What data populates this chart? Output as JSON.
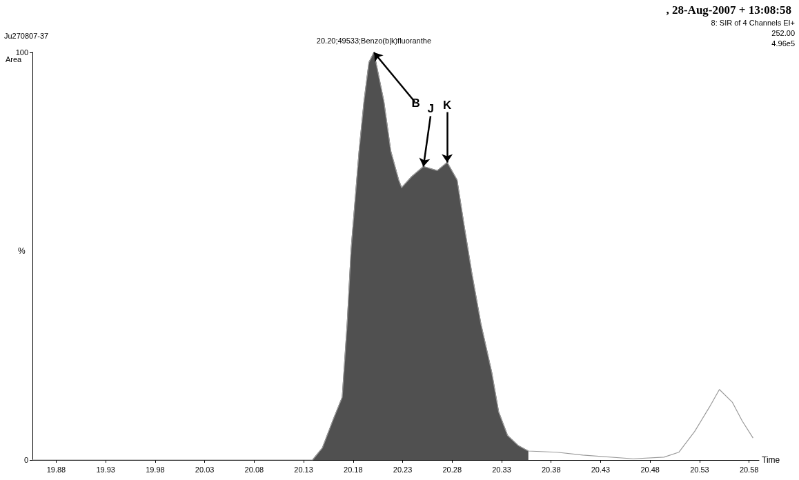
{
  "chart_data": {
    "type": "line",
    "title": ", 28-Aug-2007 + 13:08:58",
    "xlabel": "Time",
    "ylabel": "%",
    "annotations": [
      "Ju270807-37",
      "Area",
      "8: SIR of 4 Channels EI+",
      "252.00",
      "4.96e5",
      {
        "text": "20.20;49533;Benzo(b|k)fluoranthe",
        "x": 20.201,
        "y": 100
      },
      {
        "text": "B",
        "x": 20.201,
        "y": 100
      },
      {
        "text": "J",
        "x": 20.251,
        "y": 72
      },
      {
        "text": "K",
        "x": 20.275,
        "y": 73
      }
    ],
    "series": [
      {
        "type": "area",
        "color": "#505050",
        "x": [
          20.139,
          20.149,
          20.16,
          20.169,
          20.174,
          20.178,
          20.182,
          20.186,
          20.191,
          20.196,
          20.201,
          20.211,
          20.218,
          20.226,
          20.229,
          20.239,
          20.251,
          20.265,
          20.275,
          20.285,
          20.292,
          20.3,
          20.309,
          20.32,
          20.327,
          20.336,
          20.347,
          20.357
        ],
        "values": [
          0,
          3,
          10,
          15.4,
          33.5,
          51.8,
          63.8,
          75.8,
          88,
          97.6,
          100,
          88,
          75.8,
          68.7,
          66.8,
          69.5,
          72,
          71,
          73,
          68.7,
          57.7,
          45.7,
          33.5,
          21.5,
          11.8,
          6,
          3.5,
          2.2
        ]
      },
      {
        "type": "line",
        "color": "#9a9a9a",
        "x": [
          19.856,
          20.13,
          20.139,
          20.149,
          20.16,
          20.169,
          20.174,
          20.178,
          20.182,
          20.186,
          20.191,
          20.196,
          20.201,
          20.211,
          20.218,
          20.226,
          20.229,
          20.239,
          20.251,
          20.265,
          20.275,
          20.285,
          20.292,
          20.3,
          20.309,
          20.32,
          20.327,
          20.336,
          20.347,
          20.357,
          20.386,
          20.412,
          20.463,
          20.494,
          20.509,
          20.525,
          20.54,
          20.55,
          20.563,
          20.573,
          20.584
        ],
        "values": [
          0,
          0,
          0,
          3,
          10,
          15.4,
          33.5,
          51.8,
          63.8,
          75.8,
          88,
          97.6,
          100,
          88,
          75.8,
          68.7,
          66.8,
          69.5,
          72,
          71,
          73,
          68.7,
          57.7,
          45.7,
          33.5,
          21.5,
          11.8,
          6,
          3.5,
          2.2,
          1.9,
          1.2,
          0.3,
          0.7,
          1.9,
          7,
          13,
          17.3,
          14.2,
          9.6,
          5.4
        ]
      }
    ],
    "xlim": [
      19.856,
      20.59
    ],
    "xticks": [
      19.88,
      19.93,
      19.98,
      20.03,
      20.08,
      20.13,
      20.18,
      20.23,
      20.28,
      20.33,
      20.38,
      20.43,
      20.48,
      20.53,
      20.58
    ],
    "ylim": [
      0,
      100
    ],
    "yticks": [
      0,
      100
    ],
    "grid": false,
    "marker": "none",
    "line_style": "solid"
  }
}
